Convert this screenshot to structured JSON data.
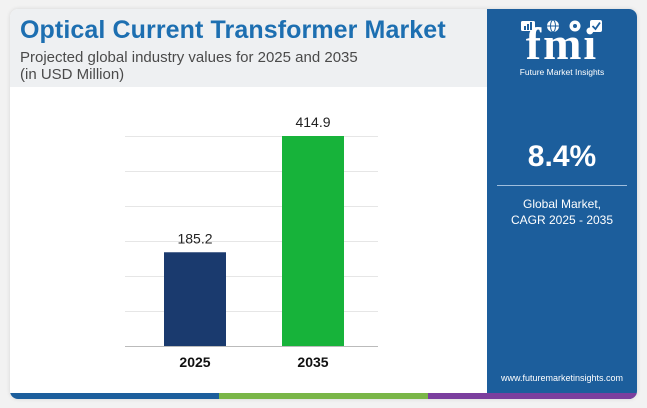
{
  "header": {
    "title": "Optical Current Transformer Market",
    "subtitle_line1": "Projected global industry values for 2025 and 2035",
    "subtitle_line2": "(in USD Million)"
  },
  "sidebar": {
    "logo_text": "fmi",
    "logo_subtext": "Future Market Insights",
    "cagr_value": "8.4%",
    "cagr_label_line1": "Global Market,",
    "cagr_label_line2": "CAGR 2025 - 2035",
    "url": "www.futuremarketinsights.com",
    "logo_icons": [
      "chart-icon",
      "globe-icon",
      "gear-icon",
      "checkmark-icon"
    ]
  },
  "colors": {
    "title": "#1d6fb1",
    "sidebar": "#1c5e9c",
    "bar_2025": "#1a3a6e",
    "bar_2035": "#17b33a",
    "strip": [
      "#1c5e9c",
      "#7ab648",
      "#7b3f9e"
    ]
  },
  "chart_data": {
    "type": "bar",
    "categories": [
      "2025",
      "2035"
    ],
    "values": [
      185.2,
      414.9
    ],
    "value_labels": [
      "185.2",
      "414.9"
    ],
    "ylim": [
      0,
      414.9
    ],
    "grid": true
  }
}
